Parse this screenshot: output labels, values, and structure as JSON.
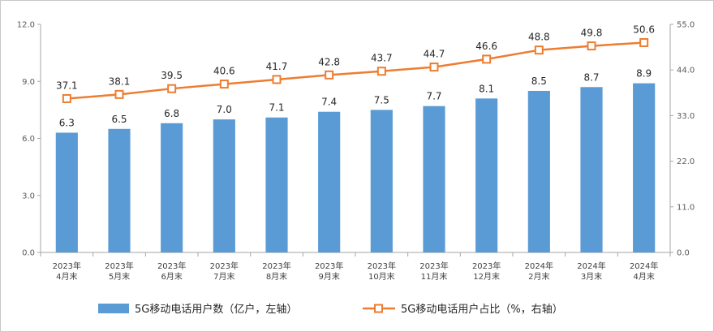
{
  "chart_data": {
    "type": "bar+line",
    "categories": [
      [
        "2023年",
        "4月末"
      ],
      [
        "2023年",
        "5月末"
      ],
      [
        "2023年",
        "6月末"
      ],
      [
        "2023年",
        "7月末"
      ],
      [
        "2023年",
        "8月末"
      ],
      [
        "2023年",
        "9月末"
      ],
      [
        "2023年",
        "10月末"
      ],
      [
        "2023年",
        "11月末"
      ],
      [
        "2023年",
        "12月末"
      ],
      [
        "2024年",
        "2月末"
      ],
      [
        "2024年",
        "3月末"
      ],
      [
        "2024年",
        "4月末"
      ]
    ],
    "series": [
      {
        "name": "5G移动电话用户数（亿户，左轴）",
        "kind": "bar",
        "axis": "left",
        "color": "#5b9bd5",
        "values": [
          6.3,
          6.5,
          6.8,
          7.0,
          7.1,
          7.4,
          7.5,
          7.7,
          8.1,
          8.5,
          8.7,
          8.9
        ],
        "labels": [
          "6.3",
          "6.5",
          "6.8",
          "7.0",
          "7.1",
          "7.4",
          "7.5",
          "7.7",
          "8.1",
          "8.5",
          "8.7",
          "8.9"
        ]
      },
      {
        "name": "5G移动电话用户占比（%，右轴）",
        "kind": "line",
        "axis": "right",
        "color": "#ed7d31",
        "values": [
          37.1,
          38.1,
          39.5,
          40.6,
          41.7,
          42.8,
          43.7,
          44.7,
          46.6,
          48.8,
          49.8,
          50.6
        ],
        "labels": [
          "37.1",
          "38.1",
          "39.5",
          "40.6",
          "41.7",
          "42.8",
          "43.7",
          "44.7",
          "46.6",
          "48.8",
          "49.8",
          "50.6"
        ]
      }
    ],
    "left_axis": {
      "ylim": [
        0,
        12
      ],
      "ticks": [
        "0.0",
        "3.0",
        "6.0",
        "9.0",
        "12.0"
      ]
    },
    "right_axis": {
      "ylim": [
        0,
        55
      ],
      "ticks": [
        "0.0",
        "11.0",
        "22.0",
        "33.0",
        "44.0",
        "55.0"
      ]
    },
    "legend": "bottom-center"
  }
}
